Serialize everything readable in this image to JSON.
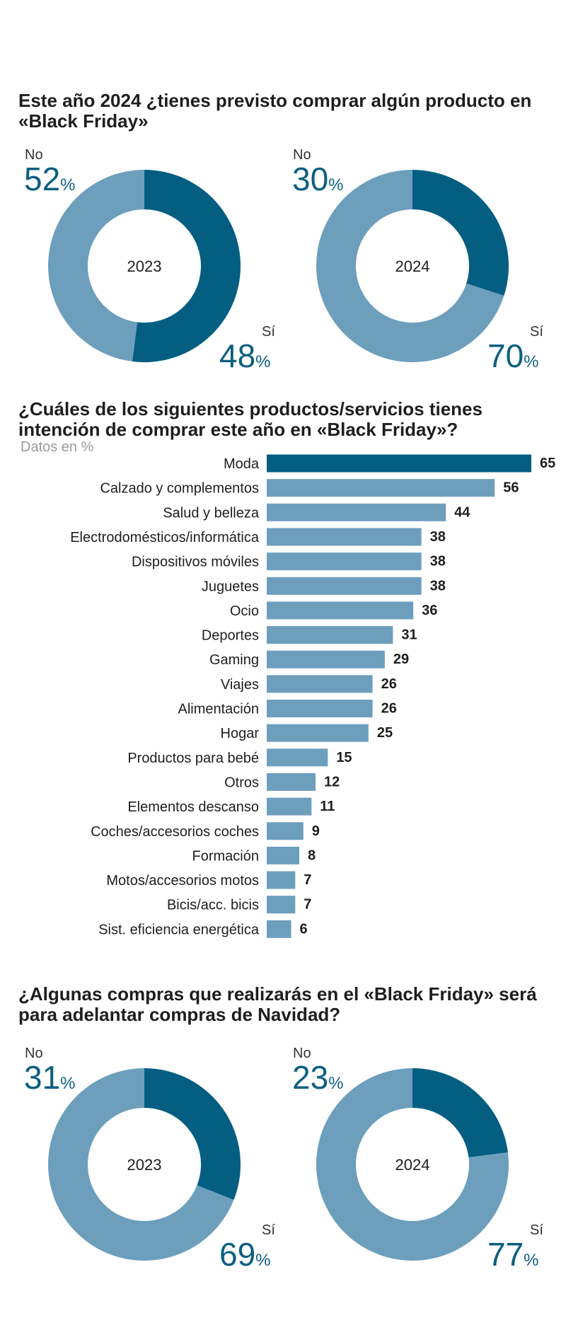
{
  "colors": {
    "dark": "#035e82",
    "light": "#6d9fbd"
  },
  "q1": {
    "title": "Este año 2024 ¿tienes previsto comprar algún producto en «Black Friday»",
    "donuts": [
      {
        "year": "2023",
        "no_label": "No",
        "no_value": "52",
        "si_label": "Sí",
        "si_value": "48",
        "pct": "%"
      },
      {
        "year": "2024",
        "no_label": "No",
        "no_value": "30",
        "si_label": "Sí",
        "si_value": "70",
        "pct": "%"
      }
    ]
  },
  "q2": {
    "title": "¿Cuáles de los siguientes productos/servicios tienes intención de comprar este año en «Black Friday»?",
    "subtitle": "Datos en %"
  },
  "chart_data": [
    {
      "type": "pie",
      "title": "2023",
      "categories": [
        "No",
        "Sí"
      ],
      "values": [
        52,
        48
      ]
    },
    {
      "type": "pie",
      "title": "2024",
      "categories": [
        "No",
        "Sí"
      ],
      "values": [
        30,
        70
      ]
    },
    {
      "type": "bar",
      "orientation": "horizontal",
      "title": "¿Cuáles de los siguientes productos/servicios tienes intención de comprar este año en «Black Friday»?",
      "subtitle": "Datos en %",
      "categories": [
        "Moda",
        "Calzado y complementos",
        "Salud y belleza",
        "Electrodomésticos/informática",
        "Dispositivos móviles",
        "Juguetes",
        "Ocio",
        "Deportes",
        "Gaming",
        "Viajes",
        "Alimentación",
        "Hogar",
        "Productos para bebé",
        "Otros",
        "Elementos descanso",
        "Coches/accesorios coches",
        "Formación",
        "Motos/accesorios motos",
        "Bicis/acc. bicis",
        "Sist. eficiencia energética"
      ],
      "values": [
        65,
        56,
        44,
        38,
        38,
        38,
        36,
        31,
        29,
        26,
        26,
        25,
        15,
        12,
        11,
        9,
        8,
        7,
        7,
        6
      ],
      "xlim": [
        0,
        65
      ]
    },
    {
      "type": "pie",
      "title": "2023",
      "categories": [
        "No",
        "Sí"
      ],
      "values": [
        31,
        69
      ]
    },
    {
      "type": "pie",
      "title": "2024",
      "categories": [
        "No",
        "Sí"
      ],
      "values": [
        23,
        77
      ]
    }
  ],
  "q3": {
    "title": "¿Algunas compras que realizarás en el «Black Friday» será para adelantar compras de Navidad?",
    "donuts": [
      {
        "year": "2023",
        "no_label": "No",
        "no_value": "31",
        "si_label": "Sí",
        "si_value": "69",
        "pct": "%"
      },
      {
        "year": "2024",
        "no_label": "No",
        "no_value": "23",
        "si_label": "Sí",
        "si_value": "77",
        "pct": "%"
      }
    ]
  }
}
